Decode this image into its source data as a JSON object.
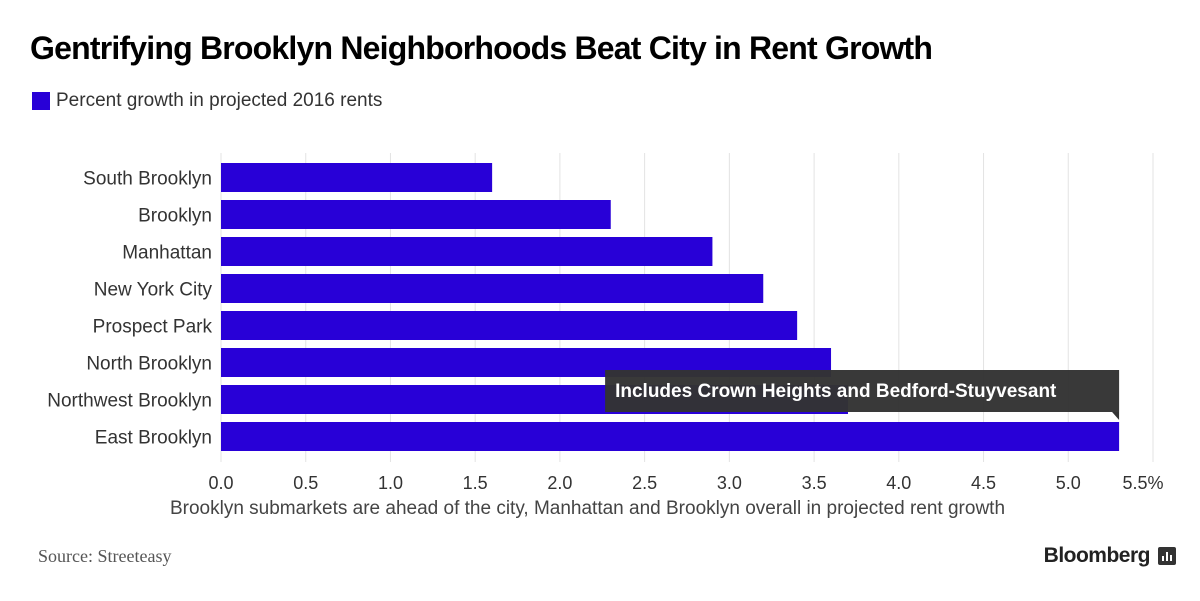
{
  "title": "Gentrifying Brooklyn Neighborhoods Beat City in Rent Growth",
  "legend_label": "Percent growth in projected 2016 rents",
  "footnote": "Brooklyn submarkets are ahead of the city, Manhattan and Brooklyn overall in projected rent growth",
  "source": "Source: Streeteasy",
  "brand": "Bloomberg",
  "chart_data": {
    "type": "bar",
    "orientation": "horizontal",
    "categories": [
      "South Brooklyn",
      "Brooklyn",
      "Manhattan",
      "New York City",
      "Prospect Park",
      "North Brooklyn",
      "Northwest Brooklyn",
      "East Brooklyn"
    ],
    "series": [
      {
        "name": "Percent growth in projected 2016 rents",
        "values": [
          1.6,
          2.3,
          2.9,
          3.2,
          3.4,
          3.6,
          3.7,
          5.3
        ],
        "color": "#2800d7"
      }
    ],
    "xlim": [
      0,
      5.5
    ],
    "xticks": [
      "0.0",
      "0.5",
      "1.0",
      "1.5",
      "2.0",
      "2.5",
      "3.0",
      "3.5",
      "4.0",
      "4.5",
      "5.0",
      "5.5%"
    ],
    "grid": "vertical",
    "legend_position": "top-left",
    "annotations": [
      {
        "category": "East Brooklyn",
        "text": "Includes Crown Heights and Bedford-Stuyvesant"
      }
    ]
  }
}
